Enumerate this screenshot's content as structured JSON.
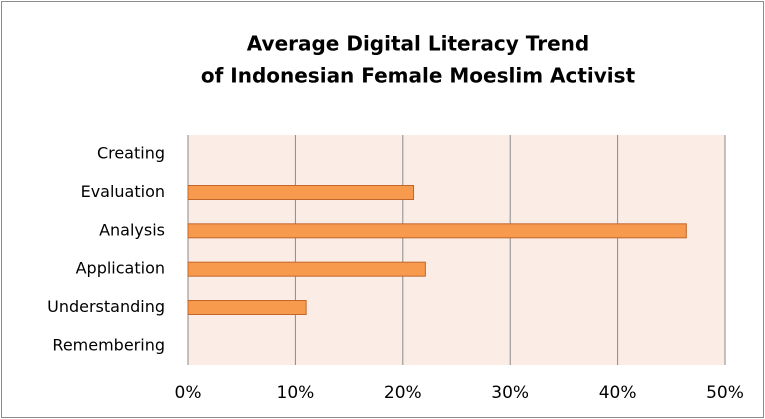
{
  "chart_data": {
    "type": "hbar",
    "title": [
      "Average Digital Literacy Trend",
      "of Indonesian Female Moeslim Activist"
    ],
    "categories": [
      "Creating",
      "Evaluation",
      "Analysis",
      "Application",
      "Understanding",
      "Remembering"
    ],
    "values": [
      0,
      21,
      46.4,
      22.1,
      11,
      0
    ],
    "color": "#f79a4e",
    "xlim": [
      0,
      50
    ],
    "xticks": [
      {
        "value": 0,
        "label": "0%"
      },
      {
        "value": 10,
        "label": "10%"
      },
      {
        "value": 20,
        "label": "20%"
      },
      {
        "value": 30,
        "label": "30%"
      },
      {
        "value": 40,
        "label": "40%"
      },
      {
        "value": 50,
        "label": "50%"
      }
    ],
    "grid": true
  }
}
